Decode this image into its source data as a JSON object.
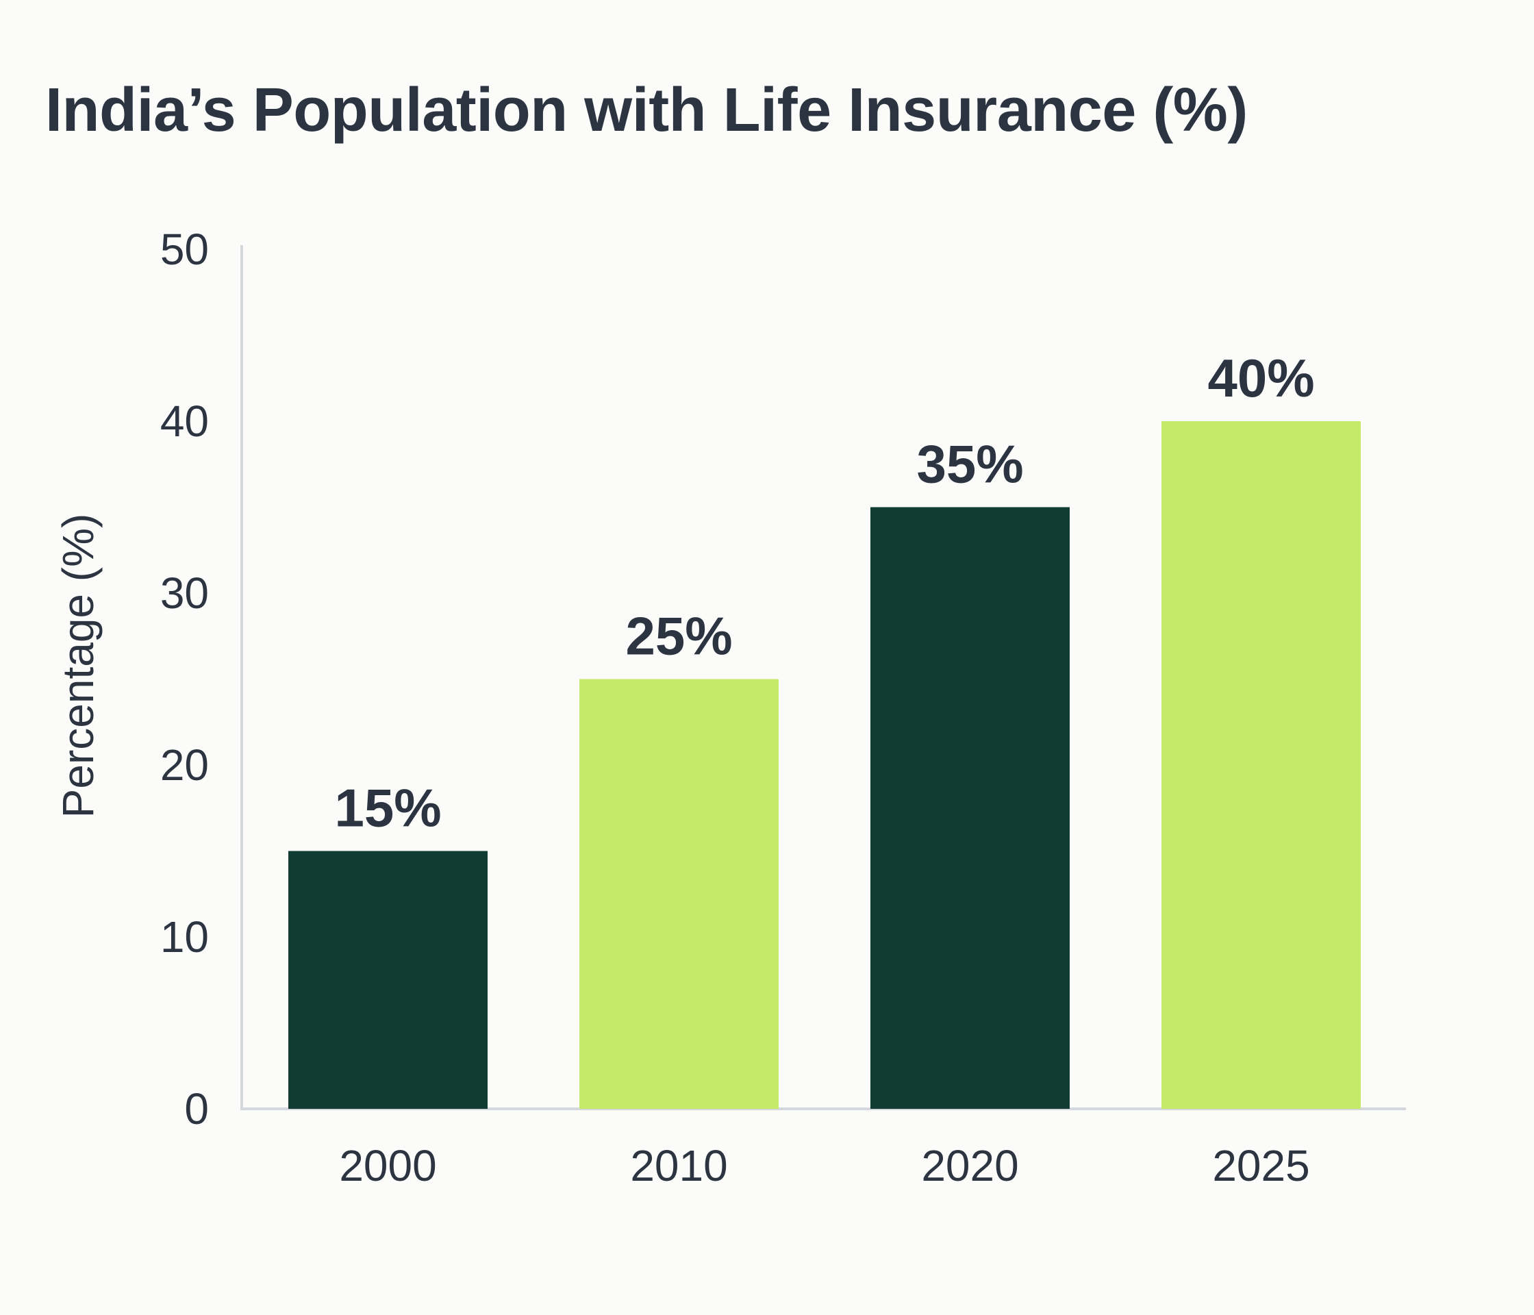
{
  "chart_data": {
    "type": "bar",
    "title": "India’s Population with Life Insurance (%)",
    "xlabel": "",
    "ylabel": "Percentage (%)",
    "categories": [
      "2000",
      "2010",
      "2020",
      "2025"
    ],
    "values": [
      15,
      25,
      35,
      40
    ],
    "value_labels": [
      "15%",
      "25%",
      "35%",
      "40%"
    ],
    "ylim": [
      0,
      50
    ],
    "yticks": [
      0,
      10,
      20,
      30,
      40,
      50
    ],
    "grid": false,
    "legend": "none",
    "colors": [
      "#113c32",
      "#c5ea6a",
      "#113c32",
      "#c5ea6a"
    ],
    "axis_color": "#d4d8dc",
    "text_color": "#2b3440"
  }
}
